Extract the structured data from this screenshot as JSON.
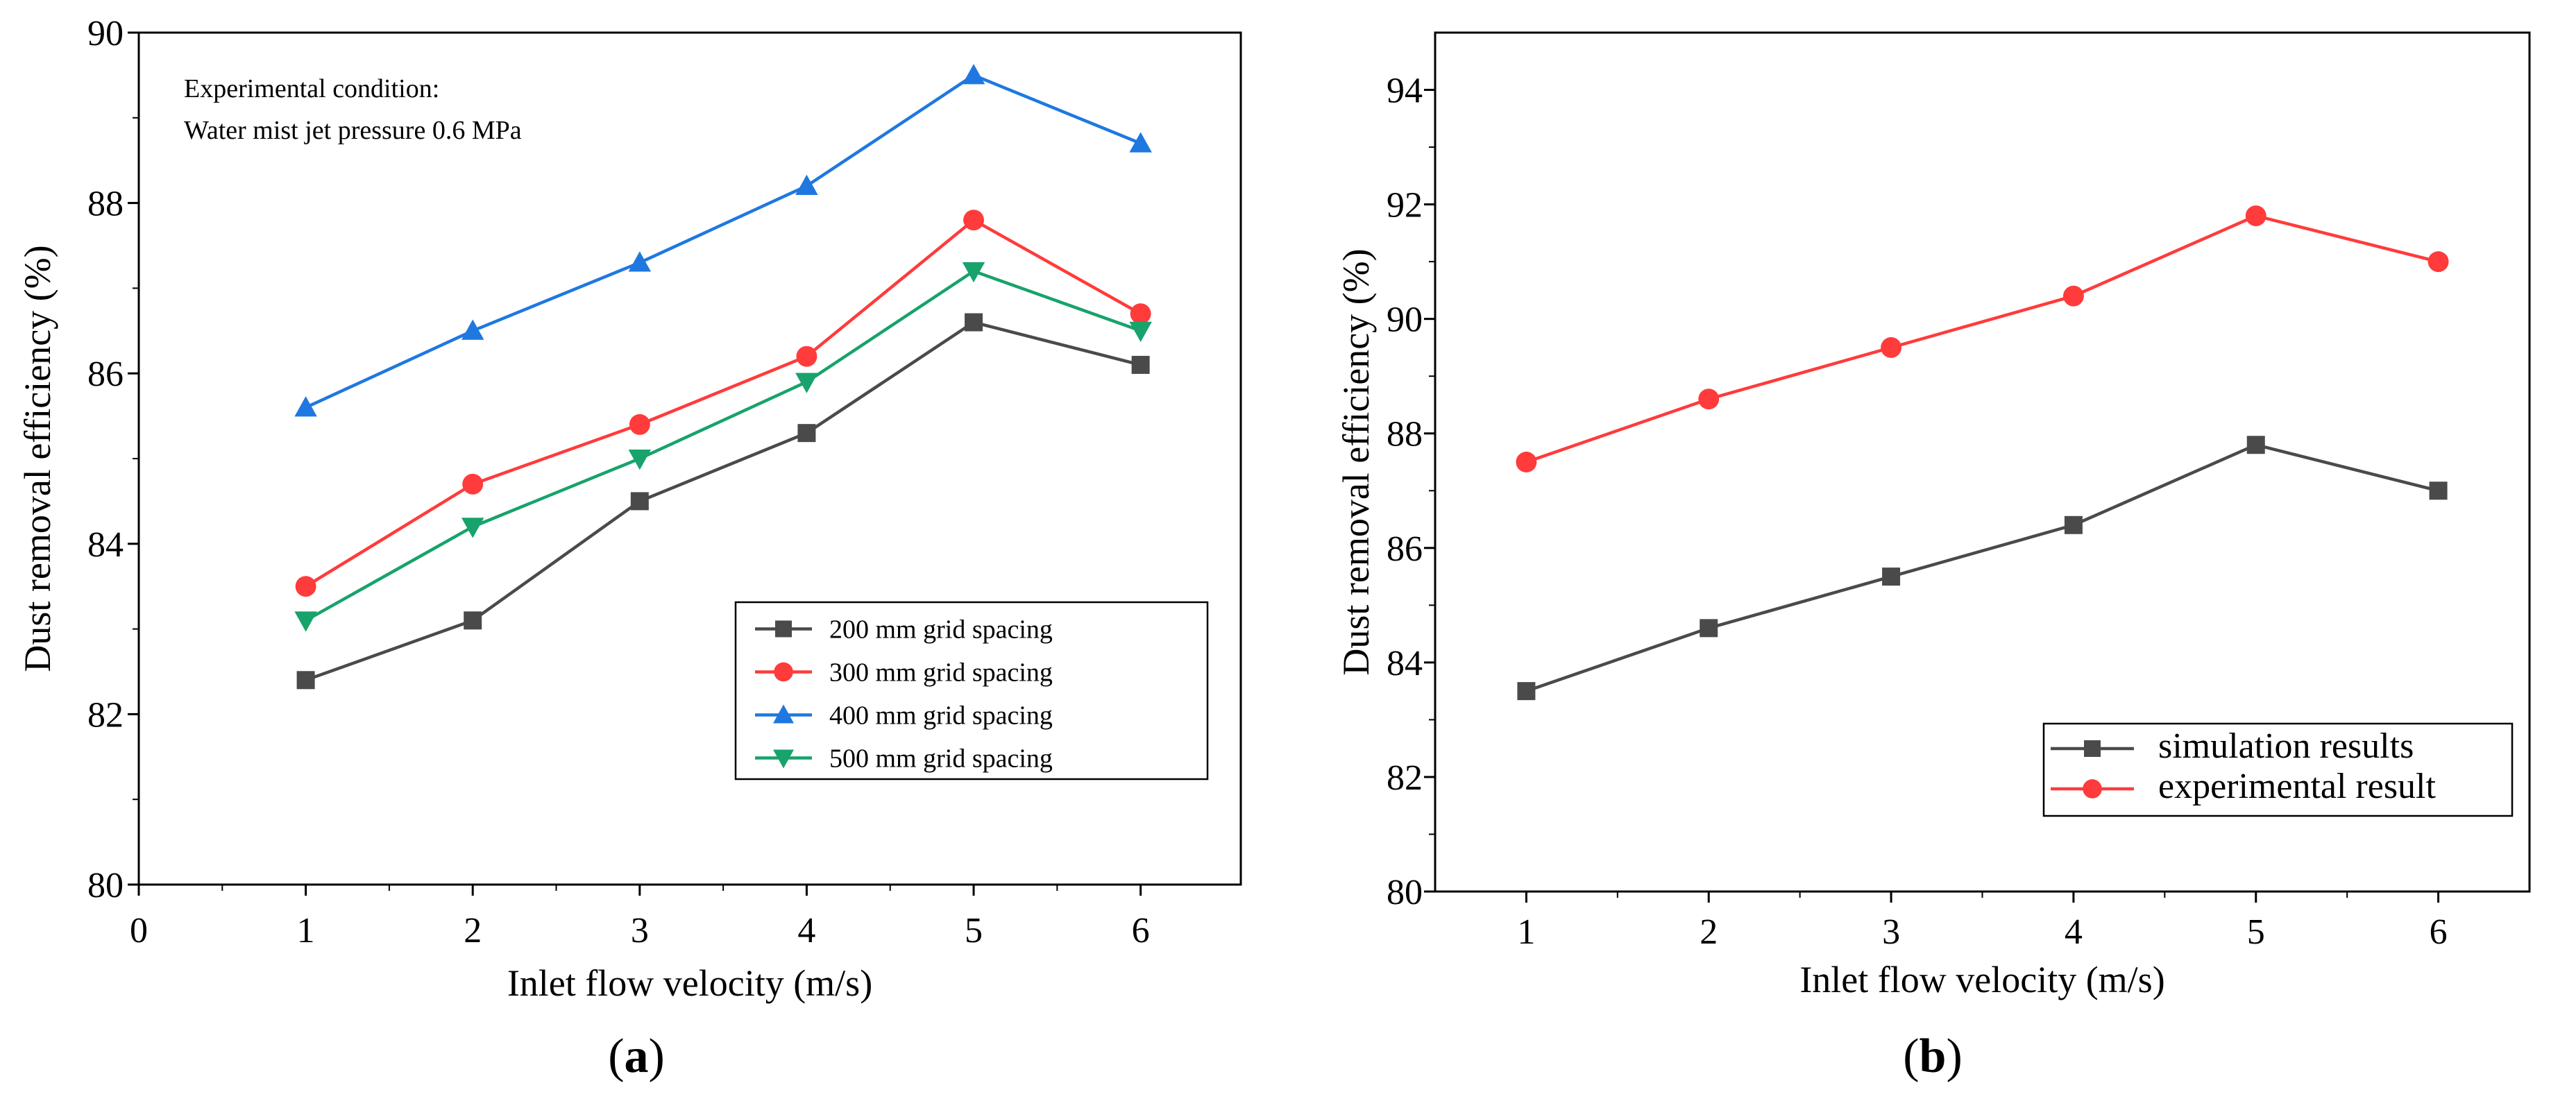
{
  "chart_data": [
    {
      "panel": "a",
      "type": "line",
      "panel_label": {
        "open": "(",
        "letter": "a",
        "close": ")"
      },
      "xlabel": "Inlet flow velocity (m/s)",
      "ylabel": "Dust removal efficiency (%)",
      "xlim": [
        0,
        6.6
      ],
      "ylim": [
        80,
        90
      ],
      "xticks": [
        0,
        1,
        2,
        3,
        4,
        5,
        6
      ],
      "yticks": [
        80,
        82,
        84,
        86,
        88,
        90
      ],
      "annotation": [
        "Experimental condition:",
        "Water mist jet pressure 0.6 MPa"
      ],
      "x": [
        1,
        2,
        3,
        4,
        5,
        6
      ],
      "series": [
        {
          "name": "200 mm grid spacing",
          "color": "#4a4a4a",
          "marker": "square",
          "values": [
            82.4,
            83.1,
            84.5,
            85.3,
            86.6,
            86.1
          ]
        },
        {
          "name": "300 mm grid spacing",
          "color": "#ff3b3b",
          "marker": "circle",
          "values": [
            83.5,
            84.7,
            85.4,
            86.2,
            87.8,
            86.7
          ]
        },
        {
          "name": "400 mm grid spacing",
          "color": "#1e78e0",
          "marker": "triangle-up",
          "values": [
            85.6,
            86.5,
            87.3,
            88.2,
            89.5,
            88.7
          ]
        },
        {
          "name": "500 mm grid spacing",
          "color": "#17a36b",
          "marker": "triangle-down",
          "values": [
            83.1,
            84.2,
            85.0,
            85.9,
            87.2,
            86.5
          ]
        }
      ]
    },
    {
      "panel": "b",
      "type": "line",
      "panel_label": {
        "open": "(",
        "letter": "b",
        "close": ")"
      },
      "xlabel": "Inlet flow velocity (m/s)",
      "ylabel": "Dust removal efficiency (%)",
      "xlim": [
        0.5,
        6.5
      ],
      "ylim": [
        80,
        95
      ],
      "xticks": [
        1,
        2,
        3,
        4,
        5,
        6
      ],
      "yticks": [
        80,
        82,
        84,
        86,
        88,
        90,
        92,
        94
      ],
      "x": [
        1,
        2,
        3,
        4,
        5,
        6
      ],
      "series": [
        {
          "name": "simulation results",
          "color": "#4a4a4a",
          "marker": "square",
          "values": [
            83.5,
            84.6,
            85.5,
            86.4,
            87.8,
            87.0
          ]
        },
        {
          "name": "experimental result",
          "color": "#ff3b3b",
          "marker": "circle",
          "values": [
            87.5,
            88.6,
            89.5,
            90.4,
            91.8,
            91.0
          ]
        }
      ]
    }
  ]
}
